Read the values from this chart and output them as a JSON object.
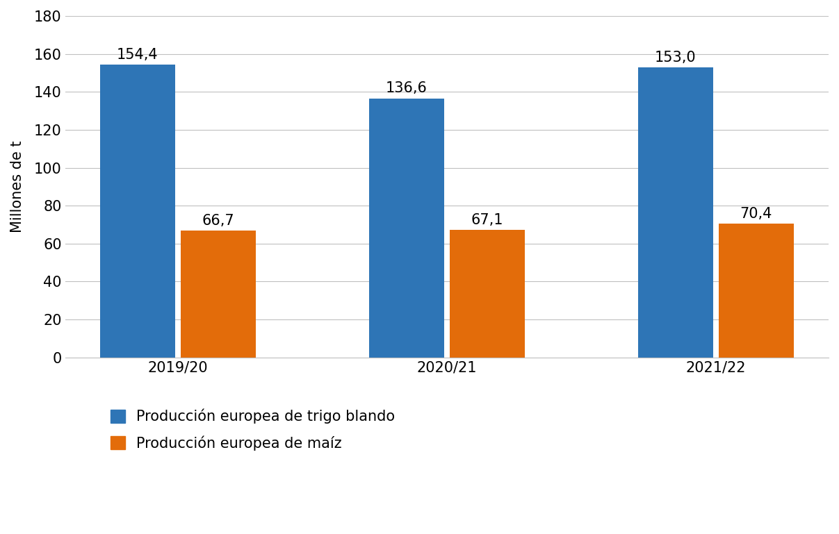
{
  "categories": [
    "2019/20",
    "2020/21",
    "2021/22"
  ],
  "trigo_values": [
    154.4,
    136.6,
    153.0
  ],
  "maiz_values": [
    66.7,
    67.1,
    70.4
  ],
  "trigo_color": "#2E75B6",
  "maiz_color": "#E36C0A",
  "ylabel": "Millones de t",
  "ylim": [
    0,
    180
  ],
  "yticks": [
    0,
    20,
    40,
    60,
    80,
    100,
    120,
    140,
    160,
    180
  ],
  "legend_trigo": "Producción europea de trigo blando",
  "legend_maiz": "Producción europea de maíz",
  "bar_width": 0.28,
  "bar_gap": 0.02,
  "tick_fontsize": 15,
  "ylabel_fontsize": 15,
  "legend_fontsize": 15,
  "value_label_fontsize": 15,
  "background_color": "#FFFFFF",
  "grid_color": "#C0C0C0"
}
